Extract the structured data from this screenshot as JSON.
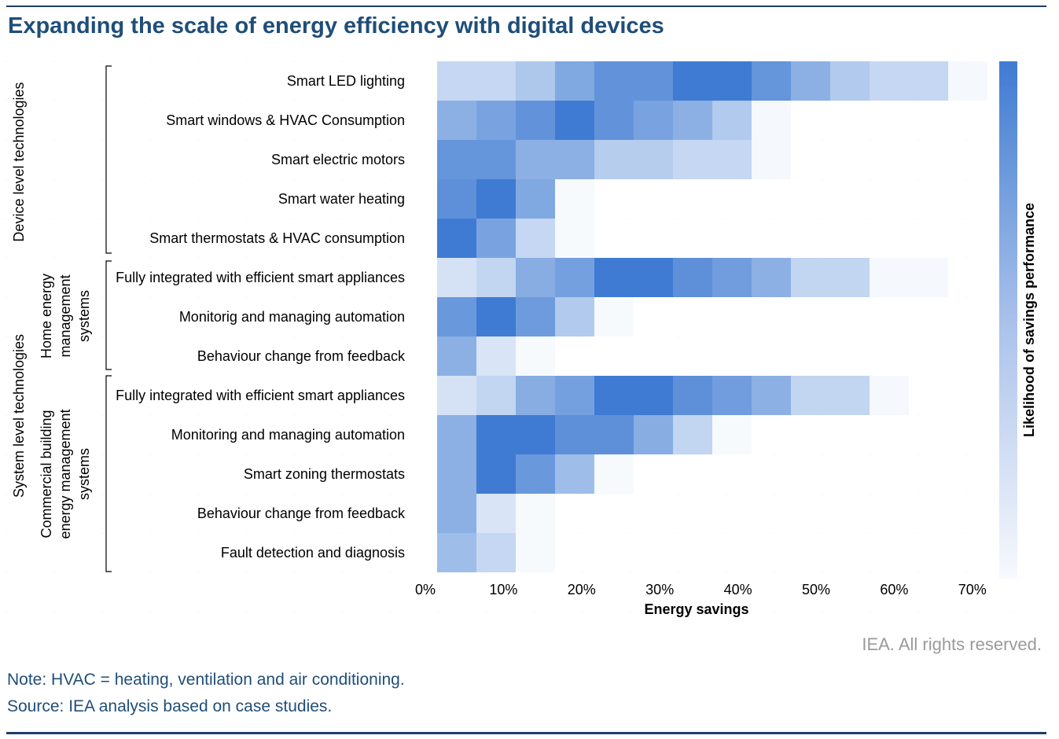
{
  "title": "Expanding the scale of energy efficiency with digital devices",
  "rights": "IEA. All rights reserved.",
  "note": "Note: HVAC = heating, ventilation and air conditioning.",
  "source": "Source: IEA analysis based on case studies.",
  "colors": {
    "accent": "#1f4e79",
    "cell_max": "#3f7bd2",
    "cell_min": "#ffffff",
    "rule": "#1f3d66"
  },
  "chart_data": {
    "type": "heatmap",
    "xlabel": "Energy savings",
    "colorbar_label": "Likelihood of savings performance",
    "x_ticks": [
      "0%",
      "10%",
      "20%",
      "30%",
      "40%",
      "50%",
      "60%",
      "70%"
    ],
    "bin_width_pct": 5,
    "bin_starts_pct": [
      2,
      7,
      12,
      17,
      22,
      27,
      32,
      37,
      42,
      47,
      52,
      57,
      62,
      67
    ],
    "groups": [
      {
        "label": "Device level technologies",
        "subgroups": [
          {
            "label": "",
            "rows": [
              0,
              1,
              2,
              3,
              4
            ]
          }
        ]
      },
      {
        "label": "System level technologies",
        "subgroups": [
          {
            "label_lines": [
              "Home energy",
              "management",
              "systems"
            ],
            "rows": [
              5,
              6,
              7
            ]
          },
          {
            "label_lines": [
              "Commercial building",
              "energy management",
              "systems"
            ],
            "rows": [
              8,
              9,
              10,
              11,
              12
            ]
          }
        ]
      }
    ],
    "rows": [
      {
        "label": "Smart LED lighting",
        "values": [
          0.3,
          0.3,
          0.42,
          0.66,
          0.82,
          0.82,
          1.0,
          1.0,
          0.8,
          0.6,
          0.4,
          0.3,
          0.3,
          0.05
        ]
      },
      {
        "label": "Smart windows & HVAC Consumption",
        "values": [
          0.6,
          0.7,
          0.82,
          1.0,
          0.82,
          0.7,
          0.6,
          0.4,
          0.05
        ]
      },
      {
        "label": "Smart electric motors",
        "values": [
          0.8,
          0.8,
          0.6,
          0.6,
          0.38,
          0.38,
          0.3,
          0.3,
          0.05
        ]
      },
      {
        "label": "Smart water heating",
        "values": [
          0.84,
          1.0,
          0.66,
          0.04
        ]
      },
      {
        "label": "Smart thermostats & HVAC consumption",
        "values": [
          1.0,
          0.7,
          0.3,
          0.04
        ]
      },
      {
        "label": "Fully integrated with efficient smart appliances",
        "values": [
          0.22,
          0.32,
          0.62,
          0.72,
          1.0,
          1.0,
          0.84,
          0.74,
          0.6,
          0.32,
          0.32,
          0.05,
          0.05
        ]
      },
      {
        "label": "Monitorig and managing automation",
        "values": [
          0.78,
          1.0,
          0.76,
          0.4,
          0.04
        ]
      },
      {
        "label": "Behaviour change from feedback",
        "values": [
          0.6,
          0.2,
          0.04
        ]
      },
      {
        "label": "Fully integrated with efficient smart appliances",
        "values": [
          0.22,
          0.32,
          0.62,
          0.72,
          1.0,
          1.0,
          0.84,
          0.74,
          0.6,
          0.32,
          0.32,
          0.05
        ]
      },
      {
        "label": "Monitoring and managing automation",
        "values": [
          0.6,
          1.0,
          1.0,
          0.84,
          0.84,
          0.62,
          0.32,
          0.04
        ]
      },
      {
        "label": "Smart zoning thermostats",
        "values": [
          0.6,
          1.0,
          0.78,
          0.5,
          0.04
        ]
      },
      {
        "label": "Behaviour change from feedback",
        "values": [
          0.6,
          0.2,
          0.04
        ]
      },
      {
        "label": "Fault detection and diagnosis",
        "values": [
          0.5,
          0.3,
          0.04
        ]
      }
    ]
  }
}
